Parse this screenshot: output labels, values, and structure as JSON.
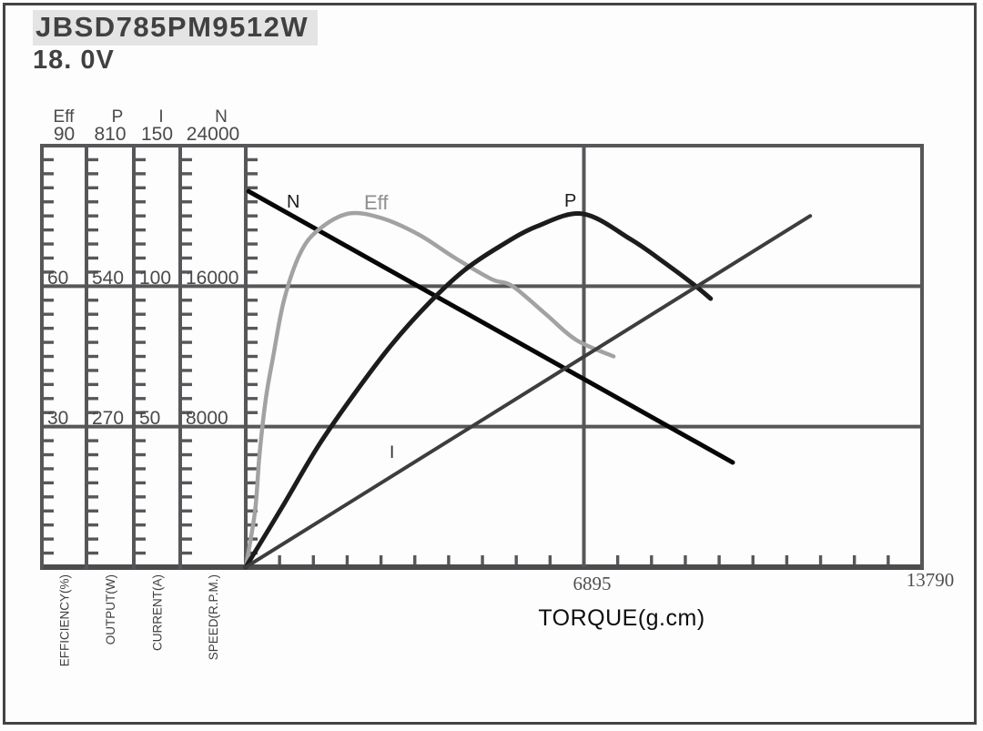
{
  "header": {
    "model": "JBSD785PM9512W",
    "voltage": "18. 0V"
  },
  "colors": {
    "grid": "#57575a",
    "frame": "#4c4c4f",
    "axis_text": "#4a4a4a",
    "title_text": "#414141",
    "torque_text": "#0e0e0e",
    "x_number_text": "#4f4f4f",
    "curve_n": "#070707",
    "curve_eff": "#a2a2a2",
    "curve_p": "#1c1c1c",
    "curve_i": "#3d3d3d",
    "label_eff": "#8f8f8f",
    "label_dark": "#1d1d1d"
  },
  "chart_data": {
    "type": "line",
    "title": "JBSD785PM9512W",
    "subtitle": "18.0V",
    "xlabel": "TORQUE(g.cm)",
    "grid": true,
    "legend_position": "inline-curve-labels",
    "x_axis": {
      "min": 0,
      "max": 13790,
      "major_tick_values": [
        6895,
        13790
      ],
      "major_tick_labels": [
        "6895",
        "13790"
      ],
      "minor_tick_count": 20
    },
    "y_axes": [
      {
        "id": "eff",
        "header": "Eff",
        "axis_title": "EFFICIENCY(%)",
        "min": 0,
        "max": 90,
        "tick_values": [
          90,
          60,
          30
        ],
        "tick_labels": [
          "90",
          "60",
          "30"
        ]
      },
      {
        "id": "p",
        "header": "P",
        "axis_title": "OUTPUT(W)",
        "min": 0,
        "max": 810,
        "tick_values": [
          810,
          540,
          270
        ],
        "tick_labels": [
          "810",
          "540",
          "270"
        ]
      },
      {
        "id": "i",
        "header": "I",
        "axis_title": "CURRENT(A)",
        "min": 0,
        "max": 150,
        "tick_values": [
          150,
          100,
          50
        ],
        "tick_labels": [
          "150",
          "100",
          "50"
        ]
      },
      {
        "id": "n",
        "header": "N",
        "axis_title": "SPEED(R.P.M.)",
        "min": 0,
        "max": 24000,
        "tick_values": [
          24000,
          16000,
          8000
        ],
        "tick_labels": [
          "24000",
          "16000",
          "8000"
        ]
      }
    ],
    "series": [
      {
        "name": "N",
        "axis": "n",
        "shape": "straight",
        "width": 5,
        "points": [
          [
            60,
            21400
          ],
          [
            9930,
            5960
          ]
        ]
      },
      {
        "name": "Eff",
        "axis": "eff",
        "shape": "smooth",
        "width": 4.5,
        "points": [
          [
            0,
            0
          ],
          [
            190,
            12
          ],
          [
            280,
            24
          ],
          [
            410,
            36
          ],
          [
            560,
            45
          ],
          [
            780,
            57
          ],
          [
            1110,
            67
          ],
          [
            1480,
            72
          ],
          [
            2100,
            75.5
          ],
          [
            2780,
            74.5
          ],
          [
            3530,
            71
          ],
          [
            4270,
            66
          ],
          [
            5010,
            61.5
          ],
          [
            5440,
            60
          ],
          [
            6120,
            54
          ],
          [
            6740,
            48.5
          ],
          [
            7500,
            45
          ]
        ]
      },
      {
        "name": "P",
        "axis": "p",
        "shape": "smooth",
        "width": 5,
        "points": [
          [
            0,
            0
          ],
          [
            740,
            115
          ],
          [
            1480,
            233
          ],
          [
            2230,
            335
          ],
          [
            2970,
            427
          ],
          [
            3710,
            505
          ],
          [
            4450,
            570
          ],
          [
            5190,
            617
          ],
          [
            5940,
            655
          ],
          [
            6870,
            679
          ],
          [
            7850,
            630
          ],
          [
            8540,
            585
          ],
          [
            9150,
            542
          ],
          [
            9480,
            516
          ]
        ]
      },
      {
        "name": "I",
        "axis": "i",
        "shape": "straight",
        "width": 4,
        "points": [
          [
            0,
            0
          ],
          [
            11510,
            125
          ]
        ]
      }
    ]
  }
}
